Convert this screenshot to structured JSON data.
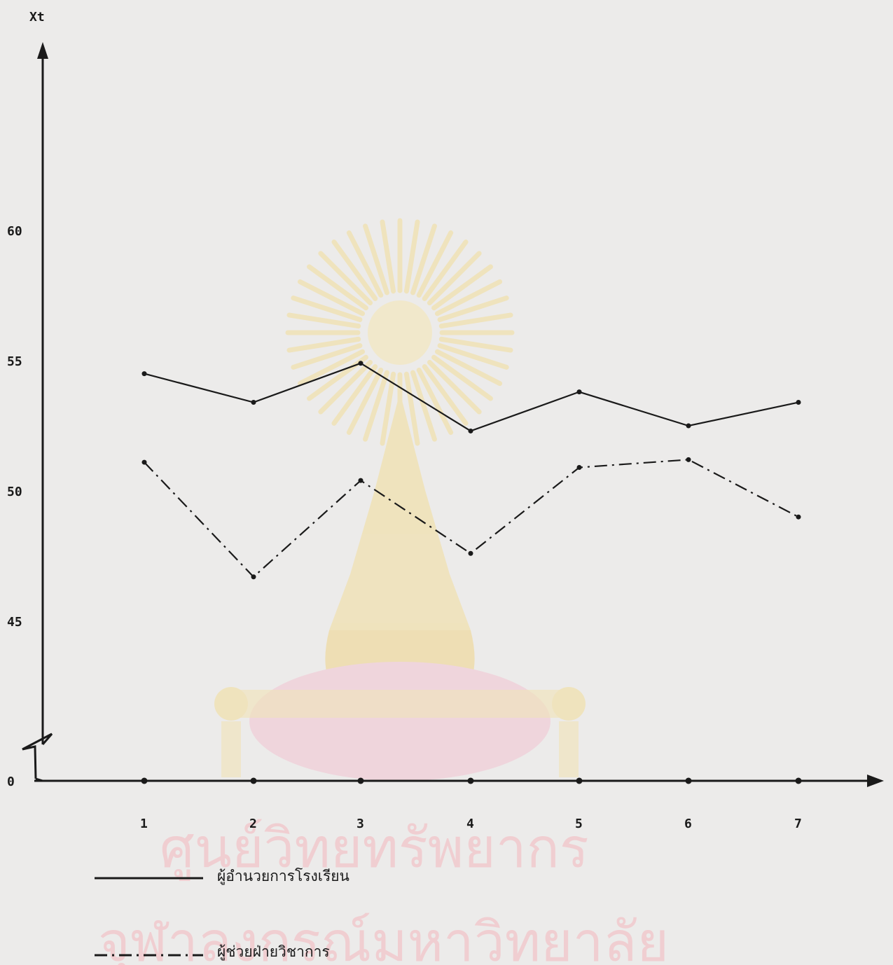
{
  "chart_data": {
    "type": "line",
    "ylabel": "Xt",
    "categories": [
      "1",
      "2",
      "3",
      "4",
      "5",
      "6",
      "7"
    ],
    "y_ticks": [
      "0",
      "45",
      "50",
      "55",
      "60"
    ],
    "ylim": [
      43,
      65
    ],
    "axis_break": true,
    "grid": false,
    "legend_placement": "bottom-left",
    "series": [
      {
        "name": "ผู้อำนวยการโรงเรียน",
        "style": "solid",
        "color": "#1a1a1a",
        "values": [
          54.5,
          53.4,
          54.9,
          52.3,
          53.8,
          52.5,
          53.4
        ]
      },
      {
        "name": "ผู้ช่วยฝ่ายวิชาการ",
        "style": "dash-dot",
        "color": "#1a1a1a",
        "values": [
          51.1,
          46.7,
          50.4,
          47.6,
          50.9,
          51.2,
          49.0
        ]
      }
    ]
  },
  "watermark": {
    "line1": "ศูนย์วิทยทรัพยากร",
    "line2": "จุฬาลงกรณ์มหาวิทยาลัย",
    "color": "#f1c8cc",
    "emblem_color": "#f3dd9a"
  }
}
